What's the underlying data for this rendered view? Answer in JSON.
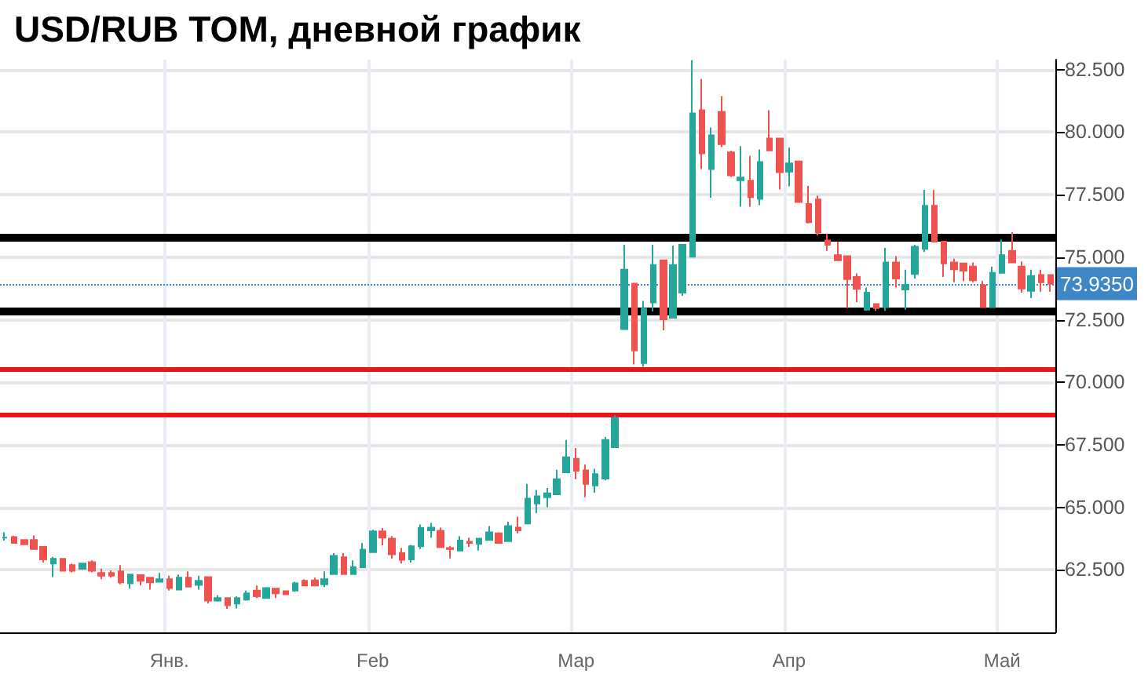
{
  "chart_data": {
    "type": "candlestick",
    "title": "USD/RUB TOM, дневной график",
    "categories": [
      null,
      null,
      null,
      null,
      null,
      null,
      null,
      null,
      null,
      null,
      null,
      null,
      null,
      null,
      null,
      null,
      null,
      "Янв.",
      null,
      null,
      null,
      null,
      null,
      null,
      null,
      null,
      null,
      null,
      null,
      null,
      null,
      null,
      null,
      null,
      null,
      null,
      null,
      null,
      "Feb",
      null,
      null,
      null,
      null,
      null,
      null,
      null,
      null,
      null,
      null,
      null,
      null,
      null,
      null,
      null,
      null,
      null,
      null,
      null,
      null,
      "Мар",
      null,
      null,
      null,
      null,
      null,
      null,
      null,
      null,
      null,
      null,
      null,
      null,
      null,
      null,
      null,
      null,
      null,
      null,
      null,
      null,
      null,
      "Апр",
      null,
      null,
      null,
      null,
      null,
      null,
      null,
      null,
      null,
      null,
      null,
      null,
      null,
      null,
      null,
      null,
      null,
      null,
      null,
      null,
      null,
      "Май",
      null,
      null,
      null,
      null,
      null
    ],
    "ohlc": [
      [
        63.79,
        64.0,
        63.67,
        63.79
      ],
      [
        63.81,
        63.87,
        63.56,
        63.58
      ],
      [
        63.69,
        63.69,
        63.5,
        63.52
      ],
      [
        63.69,
        63.875,
        63.33,
        63.33
      ],
      [
        63.42,
        63.42,
        62.79,
        62.92
      ],
      [
        62.75,
        63.02,
        62.21,
        62.94
      ],
      [
        62.94,
        62.94,
        62.46,
        62.46
      ],
      [
        62.69,
        62.75,
        62.4,
        62.46
      ],
      [
        62.54,
        62.75,
        62.5,
        62.75
      ],
      [
        62.81,
        62.875,
        62.4,
        62.46
      ],
      [
        62.375,
        62.54,
        62.125,
        62.27
      ],
      [
        62.375,
        62.48,
        62.19,
        62.27
      ],
      [
        62.44,
        62.69,
        61.92,
        62.0
      ],
      [
        61.96,
        62.31,
        61.75,
        62.31
      ],
      [
        62.29,
        62.29,
        61.875,
        62.06
      ],
      [
        62.19,
        62.19,
        61.71,
        62.0
      ],
      [
        62.02,
        62.375,
        62.0,
        62.125
      ],
      [
        62.125,
        62.27,
        61.67,
        61.77
      ],
      [
        61.71,
        62.31,
        61.71,
        62.19
      ],
      [
        62.19,
        62.44,
        61.83,
        61.83
      ],
      [
        61.9,
        62.27,
        61.71,
        62.06
      ],
      [
        62.21,
        62.21,
        61.15,
        61.27
      ],
      [
        61.27,
        61.48,
        61.23,
        61.375
      ],
      [
        61.375,
        61.375,
        60.94,
        61.08
      ],
      [
        61.15,
        61.44,
        60.96,
        61.375
      ],
      [
        61.31,
        61.67,
        61.27,
        61.56
      ],
      [
        61.67,
        61.875,
        61.375,
        61.44
      ],
      [
        61.375,
        61.81,
        61.375,
        61.77
      ],
      [
        61.75,
        61.75,
        61.375,
        61.56
      ],
      [
        61.65,
        61.65,
        61.52,
        61.52
      ],
      [
        61.67,
        62.02,
        61.625,
        61.96
      ],
      [
        62.06,
        62.125,
        61.875,
        61.875
      ],
      [
        62.08,
        62.19,
        61.875,
        61.875
      ],
      [
        61.92,
        62.44,
        61.81,
        62.125
      ],
      [
        62.33,
        63.17,
        62.33,
        63.06
      ],
      [
        63.0,
        63.17,
        62.33,
        62.33
      ],
      [
        62.33,
        62.875,
        62.33,
        62.6
      ],
      [
        62.6,
        63.58,
        62.6,
        63.31
      ],
      [
        63.21,
        64.1,
        63.21,
        64.04
      ],
      [
        64.04,
        64.17,
        63.48,
        63.79
      ],
      [
        63.75,
        63.85,
        62.96,
        63.125
      ],
      [
        63.17,
        63.375,
        62.75,
        62.9
      ],
      [
        62.92,
        63.5,
        62.79,
        63.44
      ],
      [
        63.44,
        64.31,
        63.33,
        64.17
      ],
      [
        64.08,
        64.375,
        63.79,
        64.19
      ],
      [
        64.06,
        64.19,
        63.4,
        63.4
      ],
      [
        63.375,
        63.46,
        62.96,
        63.33
      ],
      [
        63.27,
        63.85,
        63.27,
        63.67
      ],
      [
        63.625,
        63.79,
        63.42,
        63.58
      ],
      [
        63.54,
        63.75,
        63.27,
        63.75
      ],
      [
        63.69,
        64.25,
        63.69,
        64.0
      ],
      [
        63.96,
        64.0,
        63.58,
        63.58
      ],
      [
        63.65,
        64.42,
        63.65,
        64.25
      ],
      [
        64.19,
        64.625,
        63.96,
        64.08
      ],
      [
        64.35,
        65.94,
        64.35,
        65.35
      ],
      [
        65.15,
        65.69,
        64.77,
        65.44
      ],
      [
        65.4,
        65.77,
        65.0,
        65.56
      ],
      [
        65.52,
        66.5,
        65.52,
        66.125
      ],
      [
        66.4,
        67.69,
        66.4,
        67.0
      ],
      [
        66.94,
        67.375,
        66.125,
        66.46
      ],
      [
        66.48,
        66.71,
        65.4,
        65.94
      ],
      [
        65.875,
        66.54,
        65.58,
        66.33
      ],
      [
        66.15,
        67.81,
        66.08,
        67.69
      ],
      [
        67.4,
        68.67,
        67.4,
        68.58
      ],
      [
        72.125,
        75.5,
        72.125,
        74.5
      ],
      [
        73.94,
        73.94,
        70.71,
        71.27
      ],
      [
        70.77,
        73.25,
        70.625,
        72.94
      ],
      [
        73.19,
        75.5,
        72.83,
        74.69
      ],
      [
        74.875,
        74.875,
        72.08,
        72.52
      ],
      [
        72.58,
        75.46,
        72.58,
        74.69
      ],
      [
        73.58,
        75.5,
        73.46,
        75.5
      ],
      [
        75.02,
        82.875,
        75.02,
        80.75
      ],
      [
        80.875,
        82.125,
        78.52,
        79.15
      ],
      [
        78.52,
        80.19,
        77.375,
        79.875
      ],
      [
        80.81,
        81.44,
        79.4,
        79.52
      ],
      [
        79.19,
        79.25,
        78.21,
        78.27
      ],
      [
        78.08,
        79.44,
        77.02,
        78.19
      ],
      [
        78.06,
        79.06,
        77.02,
        77.4
      ],
      [
        77.33,
        79.31,
        77.08,
        78.81
      ],
      [
        79.75,
        80.875,
        79.27,
        79.27
      ],
      [
        79.75,
        79.75,
        77.71,
        78.4
      ],
      [
        78.42,
        79.375,
        77.83,
        78.75
      ],
      [
        78.83,
        78.83,
        77.21,
        77.21
      ],
      [
        77.125,
        77.85,
        76.35,
        76.4
      ],
      [
        77.31,
        77.46,
        75.875,
        75.98
      ],
      [
        75.67,
        75.94,
        75.25,
        75.5
      ],
      [
        75.08,
        75.625,
        74.875,
        74.875
      ],
      [
        75.04,
        75.04,
        72.96,
        74.125
      ],
      [
        74.21,
        74.35,
        73.21,
        73.73
      ],
      [
        72.9,
        73.79,
        72.85,
        73.58
      ],
      [
        73.125,
        73.125,
        72.85,
        72.96
      ],
      [
        73.0,
        75.375,
        72.85,
        74.79
      ],
      [
        74.79,
        75.04,
        73.79,
        74.15
      ],
      [
        73.71,
        74.5,
        72.9,
        73.9
      ],
      [
        74.33,
        75.5,
        74.15,
        75.42
      ],
      [
        75.33,
        77.69,
        75.21,
        77.06
      ],
      [
        77.06,
        77.69,
        75.625,
        75.625
      ],
      [
        75.625,
        75.625,
        74.21,
        74.75
      ],
      [
        74.79,
        74.94,
        74.0,
        74.52
      ],
      [
        74.75,
        74.75,
        74.04,
        74.46
      ],
      [
        74.625,
        74.79,
        74.0,
        74.08
      ],
      [
        73.875,
        74.06,
        73.0,
        73.0
      ],
      [
        73.0,
        74.625,
        73.0,
        74.375
      ],
      [
        74.375,
        75.71,
        74.375,
        75.08
      ],
      [
        75.25,
        76.0,
        74.79,
        74.79
      ],
      [
        74.625,
        74.83,
        73.58,
        73.75
      ],
      [
        73.65,
        74.5,
        73.375,
        74.25
      ],
      [
        74.29,
        74.5,
        73.625,
        74.0
      ],
      [
        74.29,
        74.29,
        73.625,
        73.935
      ]
    ],
    "colors": [
      "#26a69a",
      "#ef5350",
      "#ef5350",
      "#ef5350",
      "#ef5350",
      "#26a69a",
      "#ef5350",
      "#ef5350",
      "#26a69a",
      "#ef5350",
      "#ef5350",
      "#ef5350",
      "#ef5350",
      "#26a69a",
      "#ef5350",
      "#ef5350",
      "#26a69a",
      "#ef5350",
      "#26a69a",
      "#ef5350",
      "#26a69a",
      "#ef5350",
      "#26a69a",
      "#ef5350",
      "#26a69a",
      "#26a69a",
      "#ef5350",
      "#26a69a",
      "#ef5350",
      "#ef5350",
      "#26a69a",
      "#ef5350",
      "#ef5350",
      "#26a69a",
      "#26a69a",
      "#ef5350",
      "#26a69a",
      "#26a69a",
      "#26a69a",
      "#ef5350",
      "#ef5350",
      "#ef5350",
      "#26a69a",
      "#26a69a",
      "#26a69a",
      "#ef5350",
      "#ef5350",
      "#26a69a",
      "#ef5350",
      "#26a69a",
      "#26a69a",
      "#ef5350",
      "#26a69a",
      "#ef5350",
      "#26a69a",
      "#26a69a",
      "#26a69a",
      "#26a69a",
      "#26a69a",
      "#ef5350",
      "#ef5350",
      "#26a69a",
      "#26a69a",
      "#26a69a",
      "#26a69a",
      "#ef5350",
      "#26a69a",
      "#26a69a",
      "#ef5350",
      "#26a69a",
      "#26a69a",
      "#26a69a",
      "#ef5350",
      "#26a69a",
      "#ef5350",
      "#ef5350",
      "#26a69a",
      "#ef5350",
      "#26a69a",
      "#ef5350",
      "#ef5350",
      "#26a69a",
      "#ef5350",
      "#ef5350",
      "#ef5350",
      "#ef5350",
      "#ef5350",
      "#ef5350",
      "#ef5350",
      "#26a69a",
      "#ef5350",
      "#26a69a",
      "#ef5350",
      "#26a69a",
      "#26a69a",
      "#26a69a",
      "#ef5350",
      "#ef5350",
      "#ef5350",
      "#ef5350",
      "#ef5350",
      "#ef5350",
      "#26a69a",
      "#26a69a",
      "#ef5350",
      "#ef5350",
      "#26a69a",
      "#ef5350",
      "#ef5350"
    ],
    "ylim": [
      60,
      82.9
    ],
    "yticks": [
      {
        "value": 62.5,
        "label": "62.500"
      },
      {
        "value": 65,
        "label": "65.000"
      },
      {
        "value": 67.5,
        "label": "67.500"
      },
      {
        "value": 70,
        "label": "70.000"
      },
      {
        "value": 72.5,
        "label": "72.500"
      },
      {
        "value": 75,
        "label": "75.000"
      },
      {
        "value": 77.5,
        "label": "77.500"
      },
      {
        "value": 80,
        "label": "80.000"
      },
      {
        "value": 82.5,
        "label": "82.500"
      }
    ],
    "ref_lines": [
      {
        "axis": "y",
        "value": 75.8,
        "color": "#000000",
        "line_style": "solid"
      },
      {
        "axis": "y",
        "value": 72.85,
        "color": "#000000",
        "line_style": "solid"
      },
      {
        "axis": "y",
        "value": 70.5,
        "color": "#e8141c",
        "line_style": "solid"
      },
      {
        "axis": "y",
        "value": 68.7,
        "color": "#e8141c",
        "line_style": "solid"
      },
      {
        "axis": "y",
        "value": 73.935,
        "label": "73.9350",
        "color": "#3d87c9",
        "line_style": "dotted"
      }
    ],
    "grid": true
  }
}
